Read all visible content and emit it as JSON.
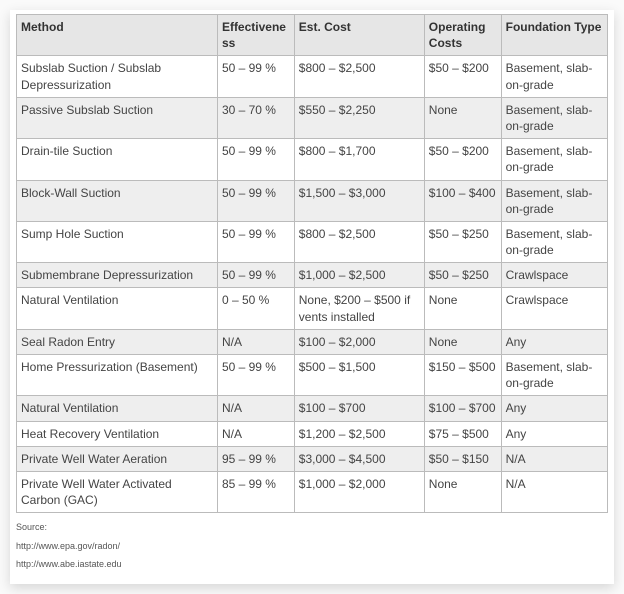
{
  "table": {
    "columns": [
      "Method",
      "Effectiveness",
      "Est. Cost",
      "Operating Costs",
      "Foundation Type"
    ],
    "rows": [
      [
        "Subslab Suction / Subslab Depressurization",
        "50 – 99 %",
        "$800 – $2,500",
        "$50 – $200",
        "Basement, slab-on-grade"
      ],
      [
        "Passive Subslab Suction",
        "30 – 70 %",
        "$550 – $2,250",
        "None",
        "Basement, slab-on-grade"
      ],
      [
        "Drain-tile Suction",
        "50 – 99 %",
        "$800 – $1,700",
        "$50 – $200",
        "Basement, slab-on-grade"
      ],
      [
        "Block-Wall Suction",
        "50 – 99 %",
        "$1,500 – $3,000",
        "$100 – $400",
        "Basement, slab-on-grade"
      ],
      [
        "Sump Hole Suction",
        "50 – 99 %",
        "$800 – $2,500",
        "$50 – $250",
        "Basement, slab-on-grade"
      ],
      [
        "Submembrane Depressurization",
        "50 – 99 %",
        "$1,000 – $2,500",
        "$50 – $250",
        "Crawlspace"
      ],
      [
        "Natural Ventilation",
        "0 – 50 %",
        "None, $200 – $500 if vents installed",
        "None",
        "Crawlspace"
      ],
      [
        "Seal Radon Entry",
        "N/A",
        "$100 – $2,000",
        "None",
        "Any"
      ],
      [
        "Home Pressurization (Basement)",
        "50 – 99 %",
        "$500 – $1,500",
        "$150 – $500",
        "Basement, slab-on-grade"
      ],
      [
        "Natural Ventilation",
        "N/A",
        "$100 – $700",
        "$100 – $700",
        "Any"
      ],
      [
        "Heat Recovery Ventilation",
        "N/A",
        "$1,200 – $2,500",
        "$75 – $500",
        "Any"
      ],
      [
        "Private Well Water Aeration",
        "95 – 99 %",
        "$3,000 – $4,500",
        "$50 – $150",
        "N/A"
      ],
      [
        "Private Well Water Activated Carbon (GAC)",
        "85 – 99 %",
        "$1,000 – $2,000",
        "None",
        "N/A"
      ]
    ]
  },
  "sources": {
    "label": "Source:",
    "links": [
      "http://www.epa.gov/radon/",
      "http://www.abe.iastate.edu"
    ]
  },
  "style": {
    "header_bg": "#e6e6e6",
    "row_alt_bg": "#eeeeee",
    "border_color": "#bbbbbb",
    "font_family": "Arial, sans-serif",
    "font_size_pt": 9,
    "col_widths_pct": [
      34,
      13,
      22,
      13,
      18
    ]
  }
}
